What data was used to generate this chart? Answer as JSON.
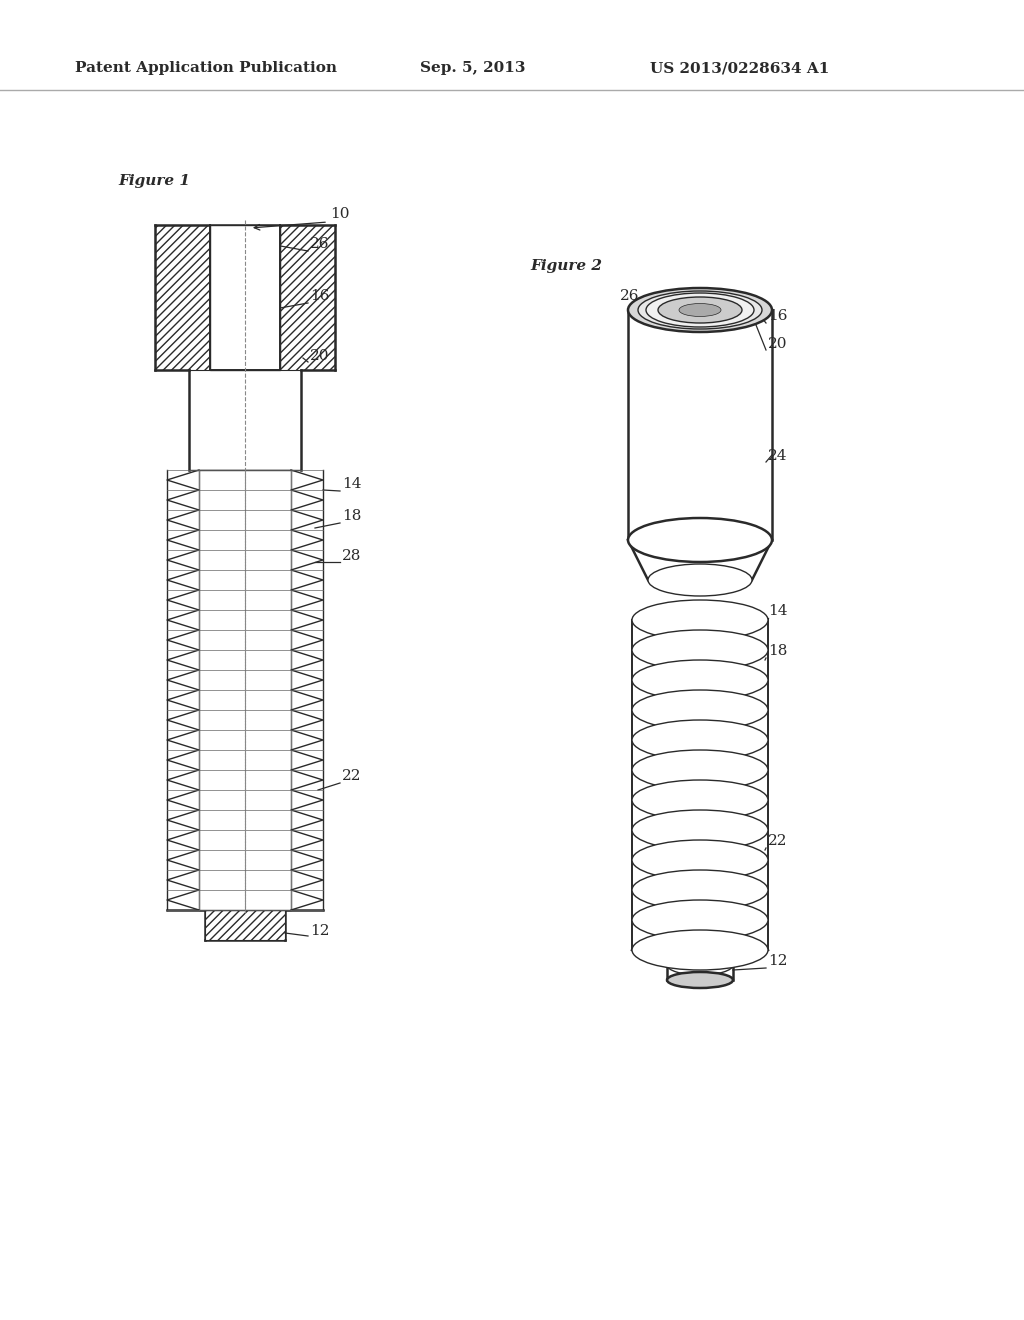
{
  "bg_color": "#ffffff",
  "line_color": "#2a2a2a",
  "header_left": "Patent Application Publication",
  "header_mid": "Sep. 5, 2013",
  "header_right": "US 2013/0228634 A1",
  "fig1_label": "Figure 1",
  "fig2_label": "Figure 2"
}
